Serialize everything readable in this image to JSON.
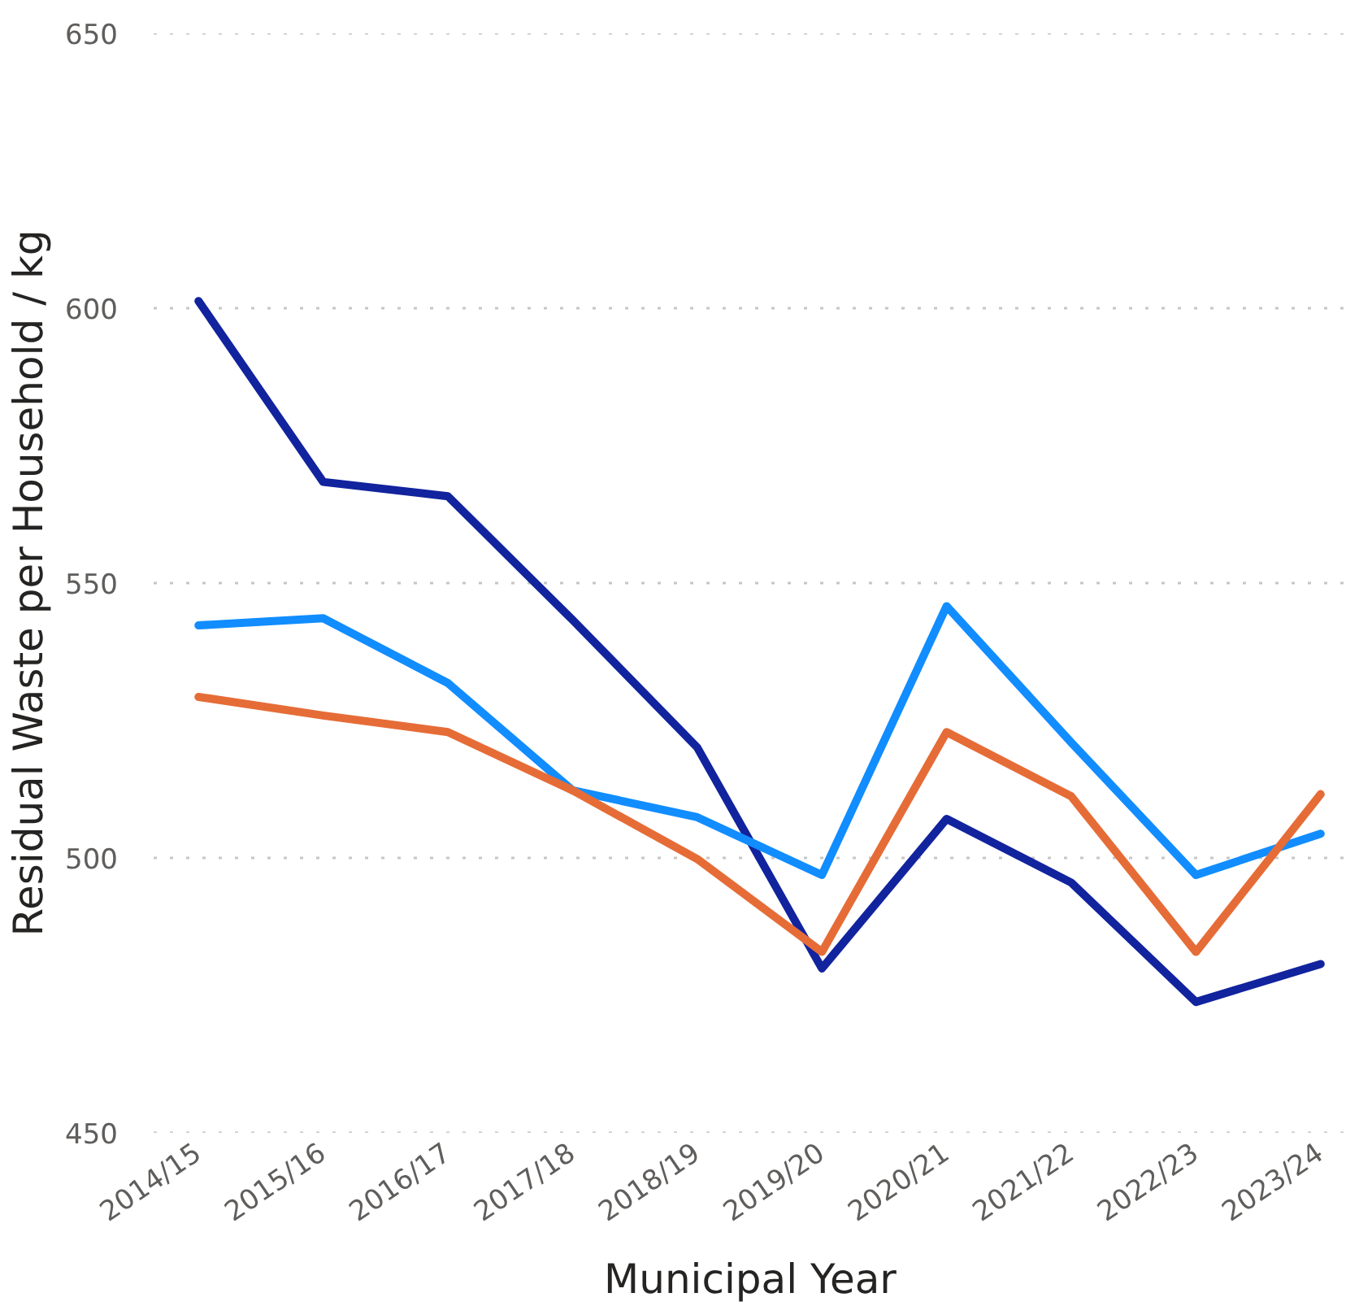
{
  "chart_data": {
    "type": "line",
    "xlabel": "Municipal Year",
    "ylabel": "Residual Waste per Household / kg",
    "categories": [
      "2014/15",
      "2015/16",
      "2016/17",
      "2017/18",
      "2018/19",
      "2019/20",
      "2020/21",
      "2021/22",
      "2022/23",
      "2023/24"
    ],
    "series": [
      {
        "color": "#12239e",
        "values": [
          601.3,
          568.4,
          565.8,
          543.3,
          520.1,
          479.9,
          507.1,
          495.5,
          473.8,
          480.7
        ]
      },
      {
        "color": "#118dff",
        "values": [
          542.3,
          543.6,
          531.8,
          512.3,
          507.4,
          496.9,
          545.8,
          521,
          496.9,
          504.4
        ]
      },
      {
        "color": "#e66c37",
        "values": [
          529.3,
          525.9,
          522.9,
          512.3,
          499.8,
          482.9,
          522.9,
          511.2,
          482.9,
          511.6
        ]
      }
    ],
    "ylim": [
      450,
      650
    ],
    "yticks": [
      450,
      500,
      550,
      600,
      650
    ],
    "grid": "y",
    "marker": "none",
    "line_style": "solid"
  }
}
